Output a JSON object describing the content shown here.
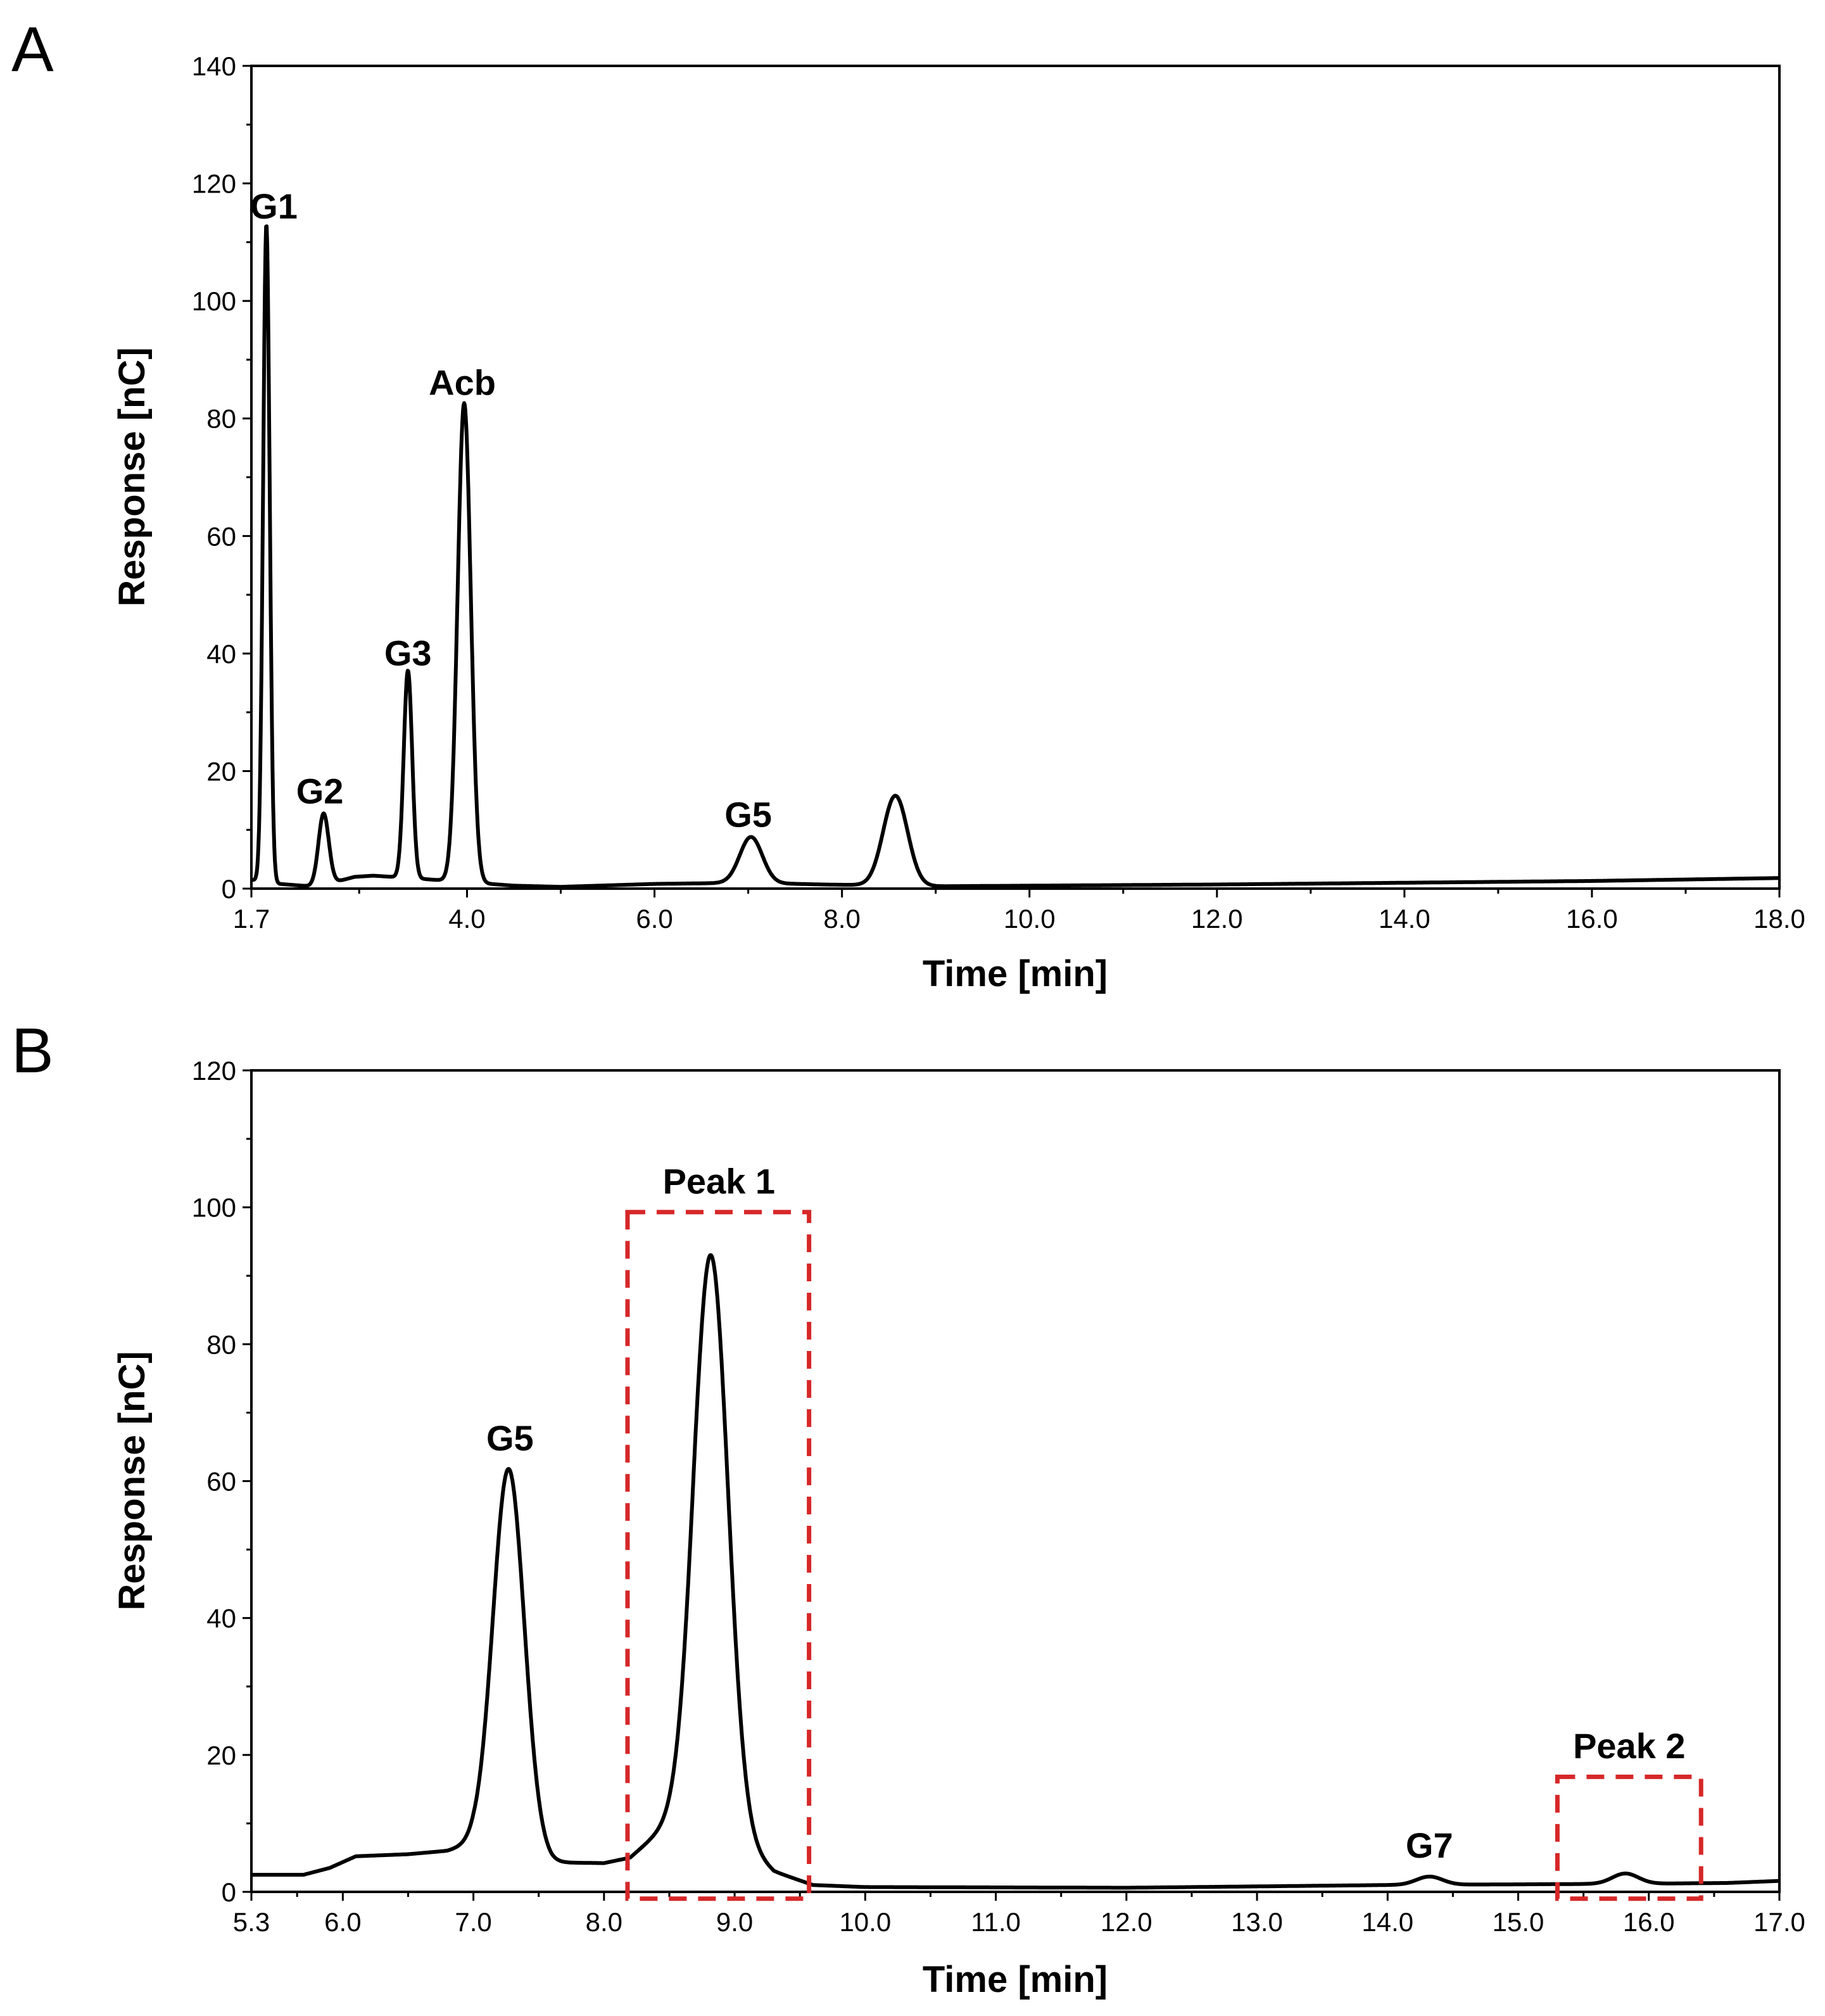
{
  "colors": {
    "trace": "#000000",
    "highlight": "#d62728"
  },
  "chart_data": [
    {
      "type": "line",
      "panel_label": "A",
      "xlabel": "Time [min]",
      "ylabel": "Response [nC]",
      "xlim": [
        1.7,
        18.0
      ],
      "ylim": [
        0,
        140
      ],
      "xticks": [
        1.7,
        4.0,
        6.0,
        8.0,
        10.0,
        12.0,
        14.0,
        16.0,
        18.0
      ],
      "xtick_labels": [
        "1.7",
        "4.0",
        "6.0",
        "8.0",
        "10.0",
        "12.0",
        "14.0",
        "16.0",
        "18.0"
      ],
      "yticks": [
        0,
        20,
        40,
        60,
        80,
        100,
        120,
        140
      ],
      "ytick_labels": [
        "0",
        "20",
        "40",
        "60",
        "80",
        "100",
        "120",
        "140"
      ],
      "baseline": [
        [
          1.7,
          1.5
        ],
        [
          2.0,
          0.8
        ],
        [
          2.4,
          0.3
        ],
        [
          2.8,
          2.0
        ],
        [
          3.0,
          2.2
        ],
        [
          3.4,
          1.8
        ],
        [
          3.65,
          1.5
        ],
        [
          4.5,
          0.5
        ],
        [
          5.0,
          0.3
        ],
        [
          6.0,
          0.8
        ],
        [
          7.0,
          1.0
        ],
        [
          7.8,
          0.7
        ],
        [
          8.2,
          0.6
        ],
        [
          9.0,
          0.4
        ],
        [
          12.0,
          0.7
        ],
        [
          14.0,
          1.0
        ],
        [
          16.0,
          1.3
        ],
        [
          18.0,
          1.8
        ]
      ],
      "peaks": [
        {
          "label": "G1",
          "t": 1.86,
          "height": 112,
          "sigma": 0.035
        },
        {
          "label": "G2",
          "t": 2.47,
          "height": 12.2,
          "sigma": 0.055
        },
        {
          "label": "G3",
          "t": 3.37,
          "height": 35.3,
          "sigma": 0.045
        },
        {
          "label": "Acb",
          "t": 3.97,
          "height": 81.5,
          "sigma": 0.07
        },
        {
          "label": "G5",
          "t": 7.03,
          "height": 7.8,
          "sigma": 0.12
        },
        {
          "label": "",
          "t": 8.57,
          "height": 15.3,
          "sigma": 0.13
        }
      ],
      "annotations": [
        {
          "text": "G1",
          "x": 1.94,
          "y": 114
        },
        {
          "text": "G2",
          "x": 2.43,
          "y": 14.5
        },
        {
          "text": "G3",
          "x": 3.37,
          "y": 38.0
        },
        {
          "text": "Acb",
          "x": 3.95,
          "y": 84.0
        },
        {
          "text": "G5",
          "x": 7.0,
          "y": 10.5
        }
      ],
      "boxes": []
    },
    {
      "type": "line",
      "panel_label": "B",
      "xlabel": "Time [min]",
      "ylabel": "Response [nC]",
      "xlim": [
        5.3,
        17.0
      ],
      "ylim": [
        0,
        120
      ],
      "xticks": [
        5.3,
        6.0,
        7.0,
        8.0,
        9.0,
        10.0,
        11.0,
        12.0,
        13.0,
        14.0,
        15.0,
        16.0,
        17.0
      ],
      "xtick_labels": [
        "5.3",
        "6.0",
        "7.0",
        "8.0",
        "9.0",
        "10.0",
        "11.0",
        "12.0",
        "13.0",
        "14.0",
        "15.0",
        "16.0",
        "17.0"
      ],
      "yticks": [
        0,
        20,
        40,
        60,
        80,
        100,
        120
      ],
      "ytick_labels": [
        "0",
        "20",
        "40",
        "60",
        "80",
        "100",
        "120"
      ],
      "baseline": [
        [
          5.3,
          2.5
        ],
        [
          5.7,
          2.5
        ],
        [
          5.9,
          3.5
        ],
        [
          6.1,
          5.2
        ],
        [
          6.5,
          5.5
        ],
        [
          6.8,
          6.0
        ],
        [
          7.0,
          7.0
        ],
        [
          7.6,
          4.3
        ],
        [
          8.0,
          4.2
        ],
        [
          8.2,
          5.0
        ],
        [
          8.5,
          10.0
        ],
        [
          8.7,
          13.0
        ],
        [
          9.3,
          3.0
        ],
        [
          9.6,
          1.0
        ],
        [
          10.0,
          0.7
        ],
        [
          12.0,
          0.6
        ],
        [
          14.0,
          1.0
        ],
        [
          15.0,
          1.1
        ],
        [
          16.0,
          1.2
        ],
        [
          16.6,
          1.3
        ],
        [
          17.0,
          1.6
        ]
      ],
      "peaks": [
        {
          "label": "G5",
          "t": 7.27,
          "height": 56.0,
          "sigma": 0.12
        },
        {
          "label": "",
          "t": 8.82,
          "height": 82.0,
          "sigma": 0.13
        },
        {
          "label": "G7",
          "t": 14.32,
          "height": 1.2,
          "sigma": 0.1
        },
        {
          "label": "",
          "t": 15.82,
          "height": 1.5,
          "sigma": 0.1
        }
      ],
      "annotations": [
        {
          "text": "G5",
          "x": 7.28,
          "y": 64.5
        },
        {
          "text": "Peak 1",
          "x": 8.88,
          "y": 102.0
        },
        {
          "text": "G7",
          "x": 14.32,
          "y": 5.0
        },
        {
          "text": "Peak 2",
          "x": 15.85,
          "y": 19.5
        }
      ],
      "boxes": [
        {
          "x0": 8.18,
          "x1": 9.57,
          "y0": -1.0,
          "y1": 99.3
        },
        {
          "x0": 15.3,
          "x1": 16.4,
          "y0": -1.0,
          "y1": 16.8
        }
      ]
    }
  ]
}
